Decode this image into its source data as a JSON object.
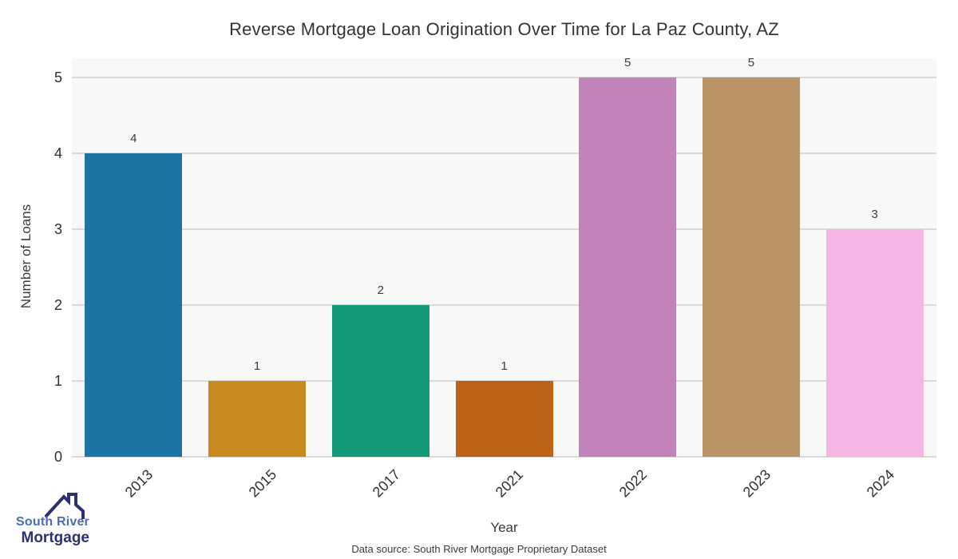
{
  "title": "Reverse Mortgage Loan Origination Over Time for La Paz County, AZ",
  "chart_data": {
    "type": "bar",
    "categories": [
      "2013",
      "2015",
      "2017",
      "2021",
      "2022",
      "2023",
      "2024"
    ],
    "values": [
      4,
      1,
      2,
      1,
      5,
      5,
      3
    ],
    "bar_colors": [
      "#1d74a4",
      "#c8891e",
      "#14997a",
      "#bd6117",
      "#c283bd",
      "#bb9366",
      "#f3b5e2"
    ],
    "title": "Reverse Mortgage Loan Origination Over Time for La Paz County, AZ",
    "xlabel": "Year",
    "ylabel": "Number of Loans",
    "yticks": [
      0,
      1,
      2,
      3,
      4,
      5
    ],
    "ylim": [
      0,
      5.25
    ],
    "grid": "horizontal-only",
    "legend": "none",
    "plot_bg": "#f8f8f7",
    "gridline_color": "#d9d9d9"
  },
  "footer": {
    "source_text": "Data source: South River Mortgage Proprietary Dataset"
  },
  "logo": {
    "icon": "house-roof-icon",
    "line1": "South River",
    "line2": "Mortgage",
    "line1_color": "#4a6dbb",
    "line2_color": "#2d3174",
    "roof_color": "#2d3174"
  }
}
